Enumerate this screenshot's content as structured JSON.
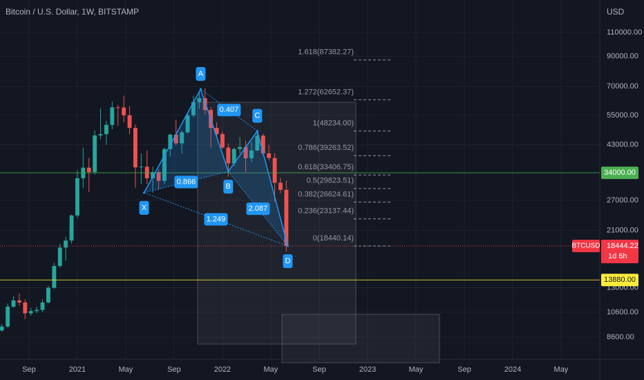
{
  "chart_data": {
    "type": "candlestick",
    "title": "Bitcoin / U.S. Dollar, 1W, BITSTAMP",
    "y_unit": "USD",
    "log_scale": true,
    "grid": true,
    "up_color": "#26a69a",
    "down_color": "#ef5350",
    "xlim": [
      2020.467,
      2024.6
    ],
    "xticks": [
      {
        "value": 2020.667,
        "label": "Sep"
      },
      2021,
      {
        "value": 2021.333,
        "label": "May"
      },
      {
        "value": 2021.667,
        "label": "Sep"
      },
      2022,
      {
        "value": 2022.333,
        "label": "May"
      },
      {
        "value": 2022.667,
        "label": "Sep"
      },
      2023,
      {
        "value": 2023.333,
        "label": "May"
      },
      {
        "value": 2023.667,
        "label": "Sep"
      },
      2024,
      {
        "value": 2024.333,
        "label": "May"
      }
    ],
    "ylim": [
      7150,
      144300
    ],
    "yticks": [
      {
        "value": 8600,
        "label": "8600.00"
      },
      {
        "value": 10600,
        "label": "10600.00"
      },
      {
        "value": 13000,
        "label": "13000.00"
      },
      {
        "value": 21000,
        "label": "21000.00"
      },
      {
        "value": 27000,
        "label": "27000.00"
      },
      {
        "value": 43000,
        "label": "43000.00"
      },
      {
        "value": 55000,
        "label": "55000.00"
      },
      {
        "value": 70000,
        "label": "70000.00"
      },
      {
        "value": 90000,
        "label": "90000.00"
      },
      {
        "value": 110000,
        "label": "110000.00"
      }
    ],
    "x": [
      2020.48,
      2020.52,
      2020.56,
      2020.6,
      2020.64,
      2020.68,
      2020.72,
      2020.76,
      2020.8,
      2020.84,
      2020.88,
      2020.92,
      2020.96,
      2021.0,
      2021.04,
      2021.08,
      2021.12,
      2021.16,
      2021.2,
      2021.24,
      2021.28,
      2021.32,
      2021.36,
      2021.4,
      2021.44,
      2021.48,
      2021.52,
      2021.56,
      2021.6,
      2021.64,
      2021.68,
      2021.72,
      2021.76,
      2021.8,
      2021.84,
      2021.88,
      2021.92,
      2021.96,
      2022.0,
      2022.04,
      2022.08,
      2022.12,
      2022.16,
      2022.2,
      2022.24,
      2022.28,
      2022.32,
      2022.36,
      2022.4,
      2022.44
    ],
    "open": [
      9100,
      9400,
      11100,
      11700,
      11500,
      10500,
      10700,
      10800,
      11500,
      13000,
      15600,
      18200,
      19300,
      23800,
      32500,
      35500,
      34200,
      46500,
      47000,
      50800,
      58800,
      58700,
      55000,
      49500,
      35600,
      35800,
      32500,
      34200,
      31800,
      41500,
      46800,
      43500,
      47700,
      55000,
      61500,
      63500,
      57500,
      49500,
      47000,
      42000,
      36800,
      41500,
      42200,
      38400,
      41000,
      46400,
      40000,
      38500,
      31300,
      29500
    ],
    "high": [
      9600,
      11400,
      12100,
      12400,
      11800,
      11000,
      11100,
      11800,
      13200,
      16000,
      18800,
      19900,
      24000,
      34800,
      42000,
      38500,
      48500,
      58300,
      52500,
      61700,
      60000,
      64800,
      59500,
      51000,
      40000,
      41000,
      35800,
      35000,
      42000,
      47200,
      52900,
      48500,
      56000,
      64800,
      67000,
      69000,
      59000,
      51900,
      48000,
      43500,
      42000,
      45800,
      44500,
      44200,
      48100,
      47200,
      42900,
      40000,
      32600,
      31900
    ],
    "low": [
      9000,
      9300,
      11000,
      11200,
      10000,
      10300,
      10500,
      10600,
      11400,
      12900,
      15400,
      16300,
      18800,
      23300,
      30000,
      29000,
      33500,
      45000,
      43000,
      49000,
      50400,
      52000,
      46900,
      30000,
      31000,
      31000,
      28800,
      29500,
      31000,
      39000,
      42800,
      40000,
      47200,
      54000,
      58000,
      55600,
      42000,
      45600,
      41500,
      32900,
      35900,
      40000,
      34300,
      37200,
      40800,
      39200,
      37700,
      26700,
      28700,
      17600
    ],
    "close": [
      9400,
      11100,
      11700,
      11500,
      10500,
      10700,
      10800,
      11500,
      13000,
      15600,
      18200,
      19300,
      23800,
      32500,
      35500,
      34200,
      46500,
      47000,
      50800,
      58800,
      58700,
      55000,
      49500,
      35600,
      35800,
      32500,
      34200,
      31800,
      41500,
      46800,
      43500,
      47700,
      55000,
      61500,
      63500,
      57500,
      49500,
      47000,
      42000,
      36800,
      41500,
      42200,
      38400,
      41000,
      46400,
      40000,
      38500,
      31300,
      29500,
      18444.22
    ],
    "last": {
      "symbol": "BTCUSD",
      "price": 18444.22,
      "countdown": "1d 6h",
      "color": "#f23645"
    },
    "price_lines": [
      {
        "value": 34000,
        "label": "34000.00",
        "color": "#4caf50"
      },
      {
        "value": 13880,
        "label": "13880.00",
        "color": "#ffeb3b"
      }
    ],
    "pattern": {
      "color": "#2196f3",
      "points": [
        {
          "label": "X",
          "x": 2021.46,
          "price": 28800
        },
        {
          "label": "A",
          "x": 2021.85,
          "price": 68500
        },
        {
          "label": "B",
          "x": 2022.04,
          "price": 34400
        },
        {
          "label": "C",
          "x": 2022.24,
          "price": 48234
        },
        {
          "label": "D",
          "x": 2022.45,
          "price": 18440.14
        }
      ],
      "ratios": [
        0.866,
        0.407,
        2.087,
        1.249
      ]
    },
    "fib_levels": [
      {
        "ratio": 1.618,
        "price": 87382.27,
        "label": "1.618(87382.27)"
      },
      {
        "ratio": 1.272,
        "price": 62652.37,
        "label": "1.272(62652.37)"
      },
      {
        "ratio": 1,
        "price": 48234.0,
        "label": "1(48234.00)"
      },
      {
        "ratio": 0.786,
        "price": 39263.52,
        "label": "0.786(39263.52)"
      },
      {
        "ratio": 0.618,
        "price": 33406.75,
        "label": "0.618(33406.75)"
      },
      {
        "ratio": 0.5,
        "price": 29823.51,
        "label": "0.5(29823.51)"
      },
      {
        "ratio": 0.382,
        "price": 26624.61,
        "label": "0.382(26624.61)"
      },
      {
        "ratio": 0.236,
        "price": 23137.44,
        "label": "0.236(23137.44)"
      },
      {
        "ratio": 0,
        "price": 18440.14,
        "label": "0(18440.14)"
      }
    ]
  }
}
